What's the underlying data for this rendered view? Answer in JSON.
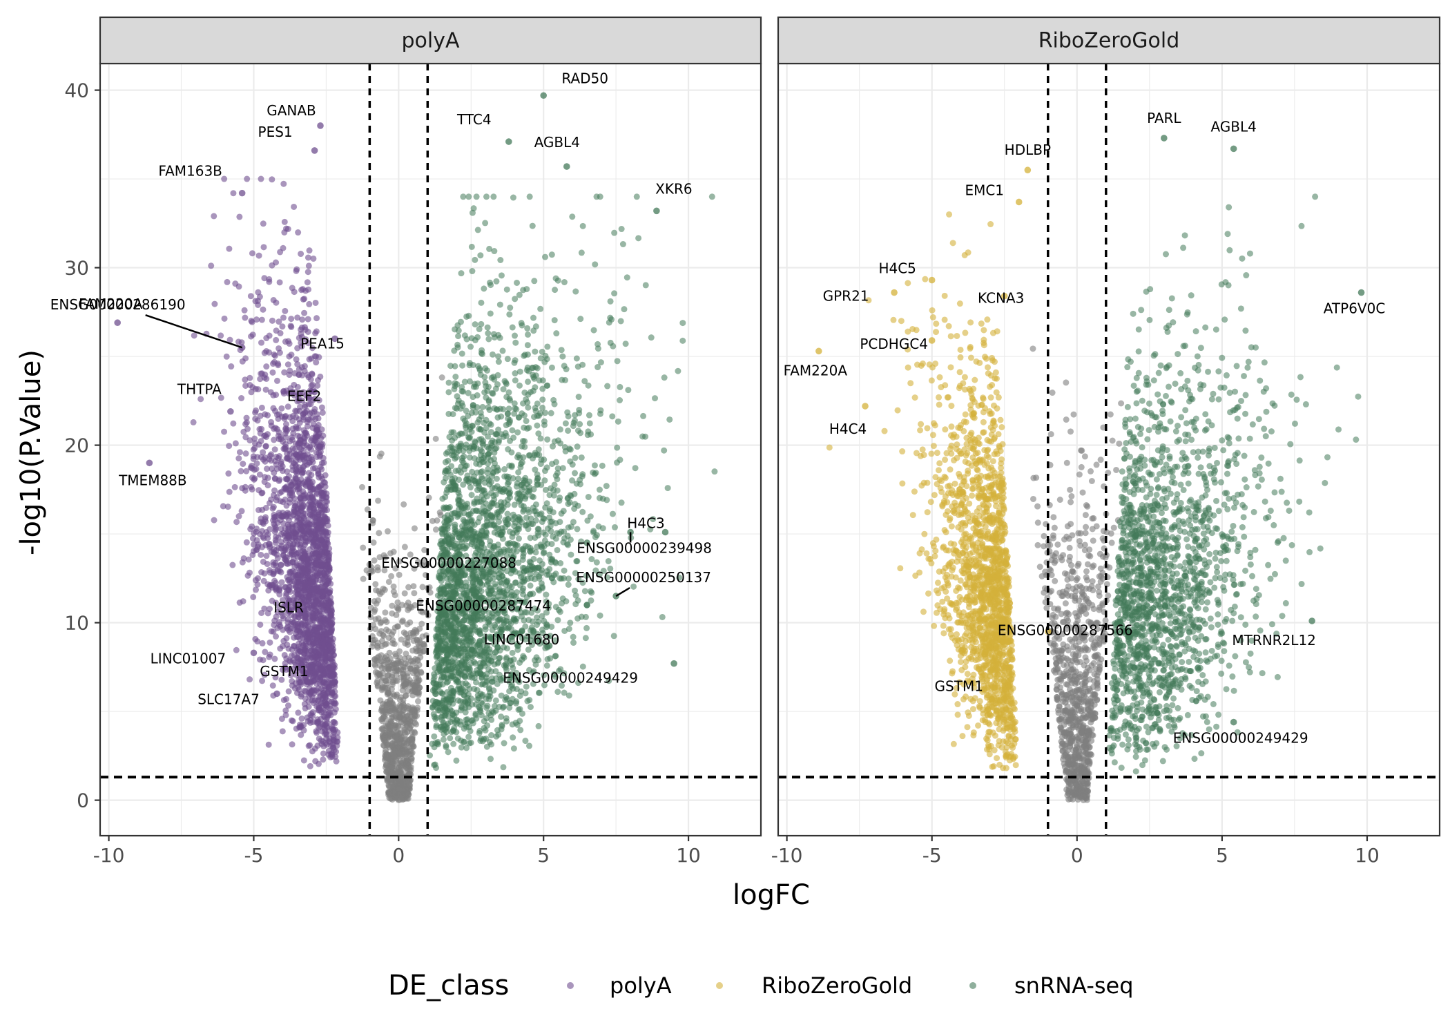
{
  "chart_data": {
    "type": "scatter",
    "title": "",
    "xlabel": "logFC",
    "ylabel": "-log10(P.Value)",
    "xlim": [
      -10.3,
      12.5
    ],
    "ylim": [
      -2,
      41.5
    ],
    "x_ticks": [
      -10,
      -5,
      0,
      5,
      10
    ],
    "x_tick_labels": [
      "-10",
      "-5",
      "0",
      "5",
      "10"
    ],
    "y_ticks": [
      0,
      10,
      20,
      30,
      40
    ],
    "y_tick_labels": [
      "0",
      "10",
      "20",
      "30",
      "40"
    ],
    "grid": true,
    "legend_placement": "bottom",
    "legend": {
      "title": "DE_class",
      "entries": [
        {
          "label": "polyA",
          "color": "#6f4f8f"
        },
        {
          "label": "RiboZeroGold",
          "color": "#d4b13a"
        },
        {
          "label": "snRNA-seq",
          "color": "#447a5a"
        }
      ]
    },
    "not_significant_color": "#7f7f7f",
    "thresholds": {
      "logFC": [
        -1,
        1
      ],
      "neg_log10_p": 1.3
    },
    "panels": [
      {
        "name": "polyA",
        "labeled_points": [
          {
            "label": "RAD50",
            "x": 5.0,
            "y": 39.7
          },
          {
            "label": "GANAB",
            "x": -2.7,
            "y": 38.0
          },
          {
            "label": "TTC4",
            "x": 3.8,
            "y": 37.1
          },
          {
            "label": "PES1",
            "x": -2.9,
            "y": 36.6
          },
          {
            "label": "AGBL4",
            "x": 5.8,
            "y": 35.7
          },
          {
            "label": "FAM163B",
            "x": -5.4,
            "y": 34.2
          },
          {
            "label": "XKR6",
            "x": 8.9,
            "y": 33.2
          },
          {
            "label": "ENSG00000286190",
            "x": -5.4,
            "y": 25.5
          },
          {
            "label": "FAM220A",
            "x": -9.7,
            "y": 26.9
          },
          {
            "label": "PEA15",
            "x": -2.2,
            "y": 26.0
          },
          {
            "label": "THTPA",
            "x": -5.8,
            "y": 21.9
          },
          {
            "label": "EEF2",
            "x": -2.9,
            "y": 23.0
          },
          {
            "label": "TMEM88B",
            "x": -8.6,
            "y": 19.0
          },
          {
            "label": "H4C3",
            "x": 9.2,
            "y": 15.1
          },
          {
            "label": "ENSG00000227088",
            "x": 6.5,
            "y": 14.5
          },
          {
            "label": "ENSG00000239498",
            "x": 8.0,
            "y": 15.1
          },
          {
            "label": "ENSG00000250137",
            "x": 7.5,
            "y": 11.5
          },
          {
            "label": "ENSG00000287474",
            "x": 6.5,
            "y": 11.0
          },
          {
            "label": "ISLR",
            "x": -3.2,
            "y": 10.5
          },
          {
            "label": "LINC01680",
            "x": 5.2,
            "y": 8.7
          },
          {
            "label": "LINC01007",
            "x": -5.0,
            "y": 8.3
          },
          {
            "label": "GSTM1",
            "x": -3.0,
            "y": 7.5
          },
          {
            "label": "ENSG00000249429",
            "x": 9.5,
            "y": 7.7
          },
          {
            "label": "SLC17A7",
            "x": -4.2,
            "y": 6.0
          }
        ]
      },
      {
        "name": "RiboZeroGold",
        "labeled_points": [
          {
            "label": "PARL",
            "x": 3.0,
            "y": 37.3
          },
          {
            "label": "AGBL4",
            "x": 5.4,
            "y": 36.7
          },
          {
            "label": "HDLBP",
            "x": -1.7,
            "y": 35.5
          },
          {
            "label": "EMC1",
            "x": -2.0,
            "y": 33.7
          },
          {
            "label": "H4C5",
            "x": -5.0,
            "y": 29.3
          },
          {
            "label": "ATP6V0C",
            "x": 9.8,
            "y": 28.6
          },
          {
            "label": "GPR21",
            "x": -6.3,
            "y": 28.6
          },
          {
            "label": "KCNA3",
            "x": -2.5,
            "y": 28.4
          },
          {
            "label": "PCDHGC4",
            "x": -5.0,
            "y": 25.9
          },
          {
            "label": "FAM220A",
            "x": -8.9,
            "y": 25.3
          },
          {
            "label": "H4C4",
            "x": -7.3,
            "y": 22.2
          },
          {
            "label": "MTRNR2L12",
            "x": 8.1,
            "y": 10.1
          },
          {
            "label": "ENSG00000287566",
            "x": -1.0,
            "y": 9.5
          },
          {
            "label": "GSTM1",
            "x": -3.0,
            "y": 7.0
          },
          {
            "label": "ENSG00000249429",
            "x": 5.4,
            "y": 4.4
          }
        ]
      }
    ]
  }
}
